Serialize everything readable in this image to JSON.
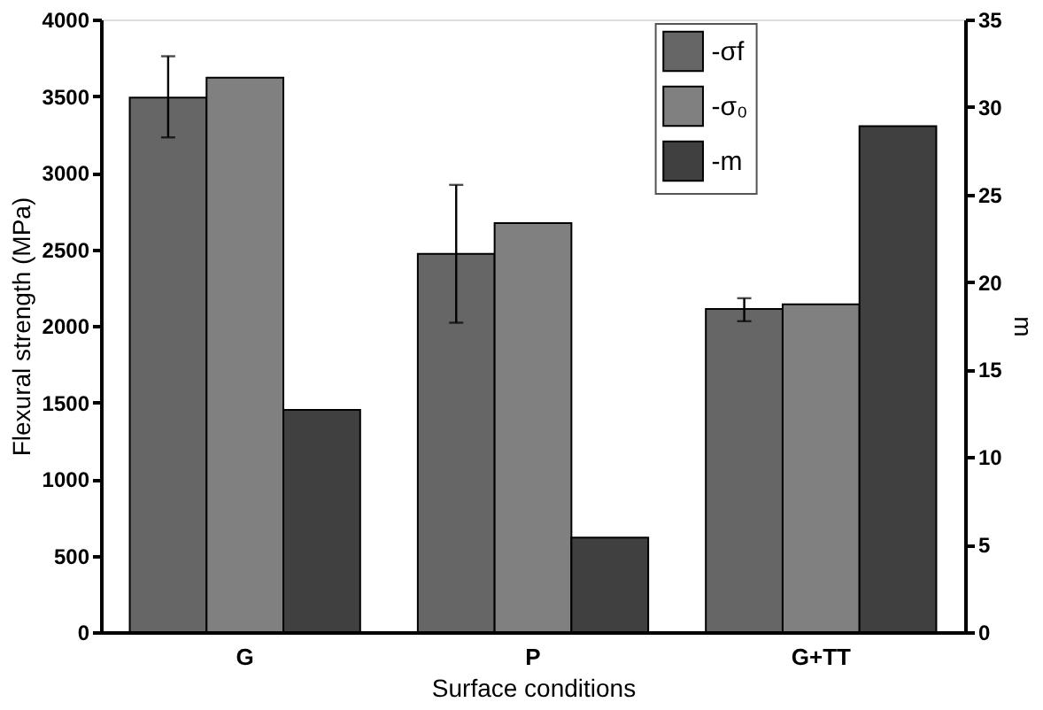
{
  "chart_data": {
    "type": "bar",
    "xlabel": "Surface conditions",
    "ylabel": "Flexural strength (MPa)",
    "y2label": "m",
    "categories": [
      "G",
      "P",
      "G+TT"
    ],
    "series": [
      {
        "name": "-σf",
        "color": "#666666",
        "values": [
          3490,
          2470,
          2110
        ],
        "errors": [
          [
            3230,
            3760
          ],
          [
            2020,
            2920
          ],
          [
            2030,
            2180
          ]
        ]
      },
      {
        "name": "-σ₀",
        "color": "#808080",
        "values": [
          3620,
          2670,
          2140
        ]
      },
      {
        "name": "-m",
        "color": "#404040",
        "values": [
          12.7,
          5.4,
          28.9
        ],
        "axis": "y2"
      }
    ],
    "ylim": [
      0,
      4000
    ],
    "yticks": [
      0,
      500,
      1000,
      1500,
      2000,
      2500,
      3000,
      3500,
      4000
    ],
    "y2lim": [
      0,
      35
    ],
    "y2ticks": [
      0,
      5,
      10,
      15,
      20,
      25,
      30,
      35
    ],
    "legend": "top right",
    "grid": false
  }
}
